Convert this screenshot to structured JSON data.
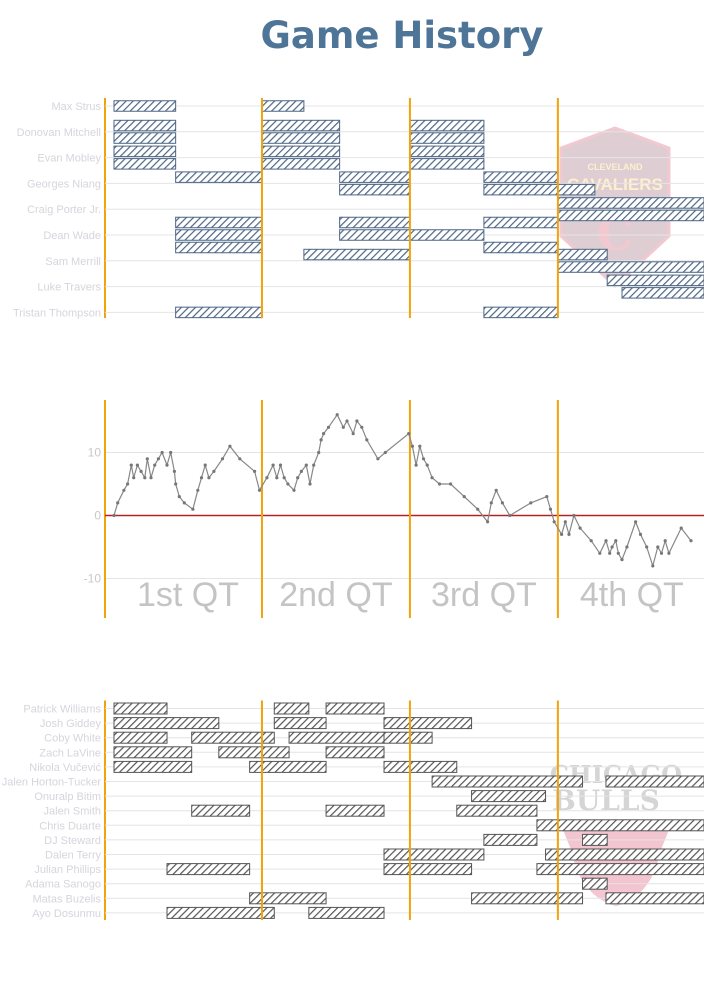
{
  "title": "Game History",
  "colors": {
    "title": "#4e7597",
    "quarter_line": "#f0a30a",
    "grid": "#e4e4e4",
    "zero_line": "#b22222",
    "diff_line": "#888888",
    "cavs_bar": "#4d6685",
    "bulls_bar": "#555555",
    "cavs_logo": "#c8102e",
    "bulls_logo": "#ce1141"
  },
  "logos": {
    "cavs": "CLEVELAND CAVALIERS",
    "bulls": "CHICAGO BULLS"
  },
  "chart_data": [
    {
      "type": "gantt",
      "team": "Cleveland Cavaliers",
      "x_unit": "game minutes",
      "xlim": [
        0,
        41
      ],
      "rows": [
        {
          "player": "Max Strus",
          "lines": [
            [
              [
                0,
                5
              ],
              [
                12,
                15.4
              ]
            ]
          ]
        },
        {
          "player": "Donovan Mitchell",
          "lines": [
            [
              [
                0,
                5
              ],
              [
                12,
                18.3
              ],
              [
                24,
                30
              ]
            ],
            [
              [
                0,
                5
              ],
              [
                12,
                18.3
              ],
              [
                24,
                30
              ]
            ]
          ]
        },
        {
          "player": "Evan Mobley",
          "lines": [
            [
              [
                0,
                5
              ],
              [
                12,
                18.3
              ],
              [
                24,
                30
              ]
            ],
            [
              [
                0,
                5
              ],
              [
                12,
                18.3
              ],
              [
                24,
                30
              ]
            ]
          ]
        },
        {
          "player": "Georges Niang",
          "lines": [
            [
              [
                5,
                12
              ],
              [
                18.3,
                24
              ],
              [
                30,
                36
              ]
            ],
            [
              [
                18.3,
                24
              ],
              [
                30,
                39
              ]
            ]
          ]
        },
        {
          "player": "Craig Porter Jr.",
          "lines": [
            [
              [
                36,
                48
              ]
            ],
            [
              [
                36,
                48
              ]
            ]
          ]
        },
        {
          "player": "Dean Wade",
          "lines": [
            [
              [
                5,
                12
              ],
              [
                18.3,
                24
              ],
              [
                30,
                36
              ]
            ],
            [
              [
                5,
                12
              ],
              [
                18.3,
                30
              ]
            ],
            [
              [
                5,
                12
              ],
              [
                30,
                36
              ]
            ]
          ]
        },
        {
          "player": "Sam Merrill",
          "lines": [
            [
              [
                15.4,
                24
              ],
              [
                36,
                40
              ]
            ],
            [
              [
                36,
                48
              ]
            ]
          ]
        },
        {
          "player": "Luke Travers",
          "lines": [
            [
              [
                40,
                48
              ]
            ],
            [
              [
                41.2,
                48
              ]
            ]
          ]
        },
        {
          "player": "Tristan Thompson",
          "lines": [
            [
              [
                5,
                12
              ],
              [
                30,
                36
              ]
            ]
          ]
        }
      ]
    },
    {
      "type": "line",
      "quarters": [
        "1st QT",
        "2nd QT",
        "3rd QT",
        "4th QT"
      ],
      "xlim": [
        0,
        48
      ],
      "ylim": [
        -15,
        17
      ],
      "yticks": [
        10,
        0,
        -10
      ],
      "x": [
        0,
        0.3,
        0.8,
        1.1,
        1.4,
        1.6,
        1.9,
        2.2,
        2.5,
        2.7,
        3.0,
        3.3,
        3.6,
        3.9,
        4.3,
        4.6,
        4.9,
        5.0,
        5.3,
        5.7,
        6.4,
        6.8,
        7.1,
        7.4,
        7.7,
        8.1,
        8.8,
        9.4,
        10.2,
        11.4,
        11.8,
        12.4,
        12.9,
        13.2,
        13.5,
        13.8,
        14.1,
        14.6,
        14.9,
        15.2,
        15.6,
        15.9,
        16.2,
        16.6,
        16.8,
        17.0,
        17.4,
        18.1,
        18.6,
        18.9,
        19.4,
        19.7,
        20.1,
        20.5,
        21.4,
        22.0,
        23.9,
        24.2,
        24.5,
        24.8,
        25.1,
        25.4,
        25.8,
        26.4,
        27.3,
        28.4,
        29.5,
        30.3,
        30.6,
        31.0,
        31.5,
        32.1,
        33.8,
        35.1,
        35.4,
        35.7,
        36.3,
        36.6,
        36.9,
        37.3,
        37.8,
        38.7,
        39.4,
        39.9,
        40.2,
        40.4,
        40.7,
        40.9,
        41.2,
        41.6,
        42.3,
        42.7,
        43.2,
        43.7,
        44.1,
        44.4,
        44.7,
        45.0,
        46.0,
        46.8
      ],
      "y": [
        0,
        2,
        4,
        5,
        8,
        6,
        8,
        7,
        6,
        9,
        6,
        8,
        9,
        10,
        8,
        10,
        7,
        5,
        3,
        2,
        1,
        4,
        6,
        8,
        6,
        7,
        9,
        11,
        9,
        7,
        4,
        6,
        8,
        6,
        8,
        6,
        5,
        4,
        6,
        7,
        8,
        5,
        8,
        10,
        12,
        13,
        14,
        16,
        14,
        15,
        13,
        15,
        14,
        12,
        9,
        10,
        13,
        11,
        8,
        11,
        9,
        8,
        6,
        5,
        5,
        3,
        1,
        -1,
        2,
        4,
        2,
        0,
        2,
        3,
        1,
        -1,
        -3,
        -1,
        -3,
        0,
        -2,
        -4,
        -6,
        -4,
        -6,
        -5,
        -4,
        -6,
        -7,
        -5,
        -1,
        -3,
        -5,
        -8,
        -5,
        -6,
        -4,
        -6,
        -2,
        -4
      ]
    },
    {
      "type": "gantt",
      "team": "Chicago Bulls",
      "x_unit": "game minutes",
      "xlim": [
        0,
        41
      ],
      "rows": [
        {
          "player": "Patrick Williams",
          "lines": [
            [
              [
                0,
                4.3
              ],
              [
                13,
                15.8
              ],
              [
                17.2,
                21.9
              ]
            ]
          ]
        },
        {
          "player": "Josh Giddey",
          "lines": [
            [
              [
                0,
                8.5
              ],
              [
                13,
                17.2
              ],
              [
                21.9,
                29
              ]
            ]
          ]
        },
        {
          "player": "Coby White",
          "lines": [
            [
              [
                0,
                4.3
              ],
              [
                6.3,
                13
              ],
              [
                14.2,
                21.9
              ],
              [
                21.9,
                25.8
              ]
            ]
          ]
        },
        {
          "player": "Zach LaVine",
          "lines": [
            [
              [
                0,
                6.3
              ],
              [
                8.5,
                14.2
              ],
              [
                17.2,
                21.9
              ]
            ]
          ]
        },
        {
          "player": "Nikola Vučević",
          "lines": [
            [
              [
                0,
                6.3
              ],
              [
                11,
                17.2
              ],
              [
                21.9,
                27.8
              ]
            ]
          ]
        },
        {
          "player": "Jalen Horton-Tucker",
          "lines": [
            [
              [
                25.8,
                38
              ],
              [
                39.9,
                48
              ]
            ]
          ]
        },
        {
          "player": "Onuralp Bitim",
          "lines": [
            [
              [
                29,
                35
              ]
            ]
          ]
        },
        {
          "player": "Jalen Smith",
          "lines": [
            [
              [
                6.3,
                11
              ],
              [
                17.2,
                21.9
              ],
              [
                27.8,
                34.3
              ]
            ]
          ]
        },
        {
          "player": "Chris Duarte",
          "lines": [
            [
              [
                34.3,
                48
              ]
            ]
          ]
        },
        {
          "player": "DJ Steward",
          "lines": [
            [
              [
                30,
                34.3
              ],
              [
                38,
                40
              ]
            ]
          ]
        },
        {
          "player": "Dalen Terry",
          "lines": [
            [
              [
                21.9,
                30
              ],
              [
                35,
                48
              ]
            ]
          ]
        },
        {
          "player": "Julian Phillips",
          "lines": [
            [
              [
                4.3,
                11
              ],
              [
                21.9,
                29
              ],
              [
                34.3,
                48
              ]
            ]
          ]
        },
        {
          "player": "Adama Sanogo",
          "lines": [
            [
              [
                38,
                40
              ]
            ]
          ]
        },
        {
          "player": "Matas Buzelis",
          "lines": [
            [
              [
                11,
                17.2
              ],
              [
                29,
                38
              ],
              [
                39.9,
                48
              ]
            ]
          ]
        },
        {
          "player": "Ayo Dosunmu",
          "lines": [
            [
              [
                4.3,
                13
              ],
              [
                15.8,
                21.9
              ]
            ]
          ]
        }
      ]
    }
  ]
}
